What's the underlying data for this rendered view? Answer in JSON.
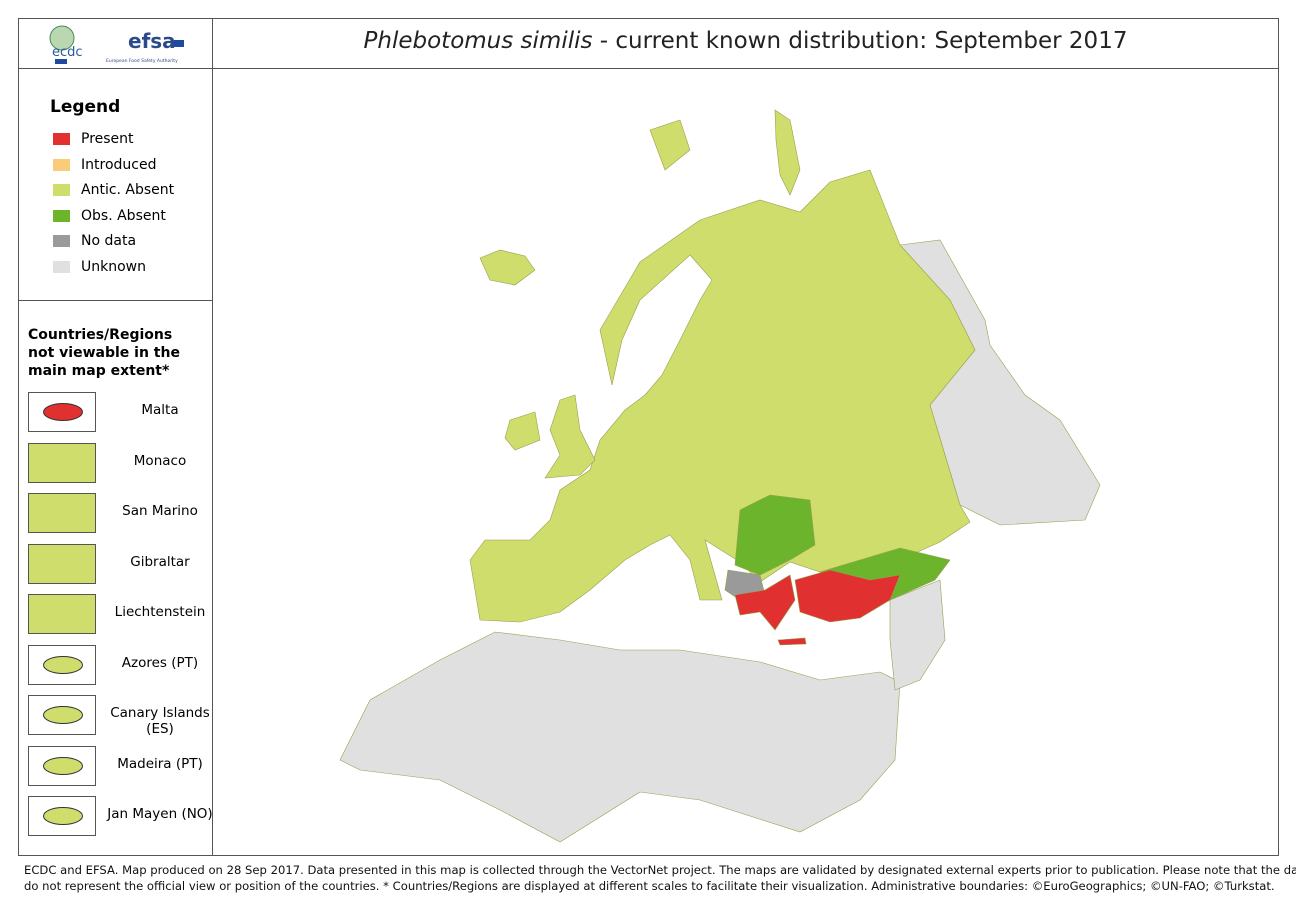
{
  "header": {
    "logos": {
      "ecdc": "ecdc",
      "efsa": "efsa",
      "efsa_sub": "European Food Safety Authority"
    },
    "title_species": "Phlebotomus similis",
    "title_rest": " - current known distribution: September 2017"
  },
  "legend": {
    "title": "Legend",
    "items": [
      {
        "label": "Present",
        "color": "#e03030"
      },
      {
        "label": "Introduced",
        "color": "#f8cc78"
      },
      {
        "label": "Antic. Absent",
        "color": "#cfdd6c"
      },
      {
        "label": "Obs. Absent",
        "color": "#6cb42c"
      },
      {
        "label": "No data",
        "color": "#9a9a9a"
      },
      {
        "label": "Unknown",
        "color": "#e0e0e0"
      }
    ]
  },
  "insets": {
    "title": "Countries/Regions not viewable in the main map extent*",
    "items": [
      {
        "label": "Malta",
        "color": "#e03030"
      },
      {
        "label": "Monaco",
        "color": "#cfdd6c"
      },
      {
        "label": "San Marino",
        "color": "#cfdd6c"
      },
      {
        "label": "Gibraltar",
        "color": "#cfdd6c"
      },
      {
        "label": "Liechtenstein",
        "color": "#cfdd6c"
      },
      {
        "label": "Azores (PT)",
        "color": "#cfdd6c"
      },
      {
        "label": "Canary Islands (ES)",
        "color": "#cfdd6c"
      },
      {
        "label": "Madeira (PT)",
        "color": "#cfdd6c"
      },
      {
        "label": "Jan Mayen (NO)",
        "color": "#cfdd6c"
      }
    ]
  },
  "footer": {
    "line1": "ECDC and EFSA. Map produced on 28 Sep 2017. Data presented in this map is collected through the VectorNet project. The maps are validated by designated external experts prior to publication. Please note that the data",
    "line2": "do not represent the official view or position of the countries. * Countries/Regions are displayed at different scales to facilitate their visualization. Administrative boundaries: ©EuroGeographics; ©UN-FAO; ©Turkstat."
  }
}
